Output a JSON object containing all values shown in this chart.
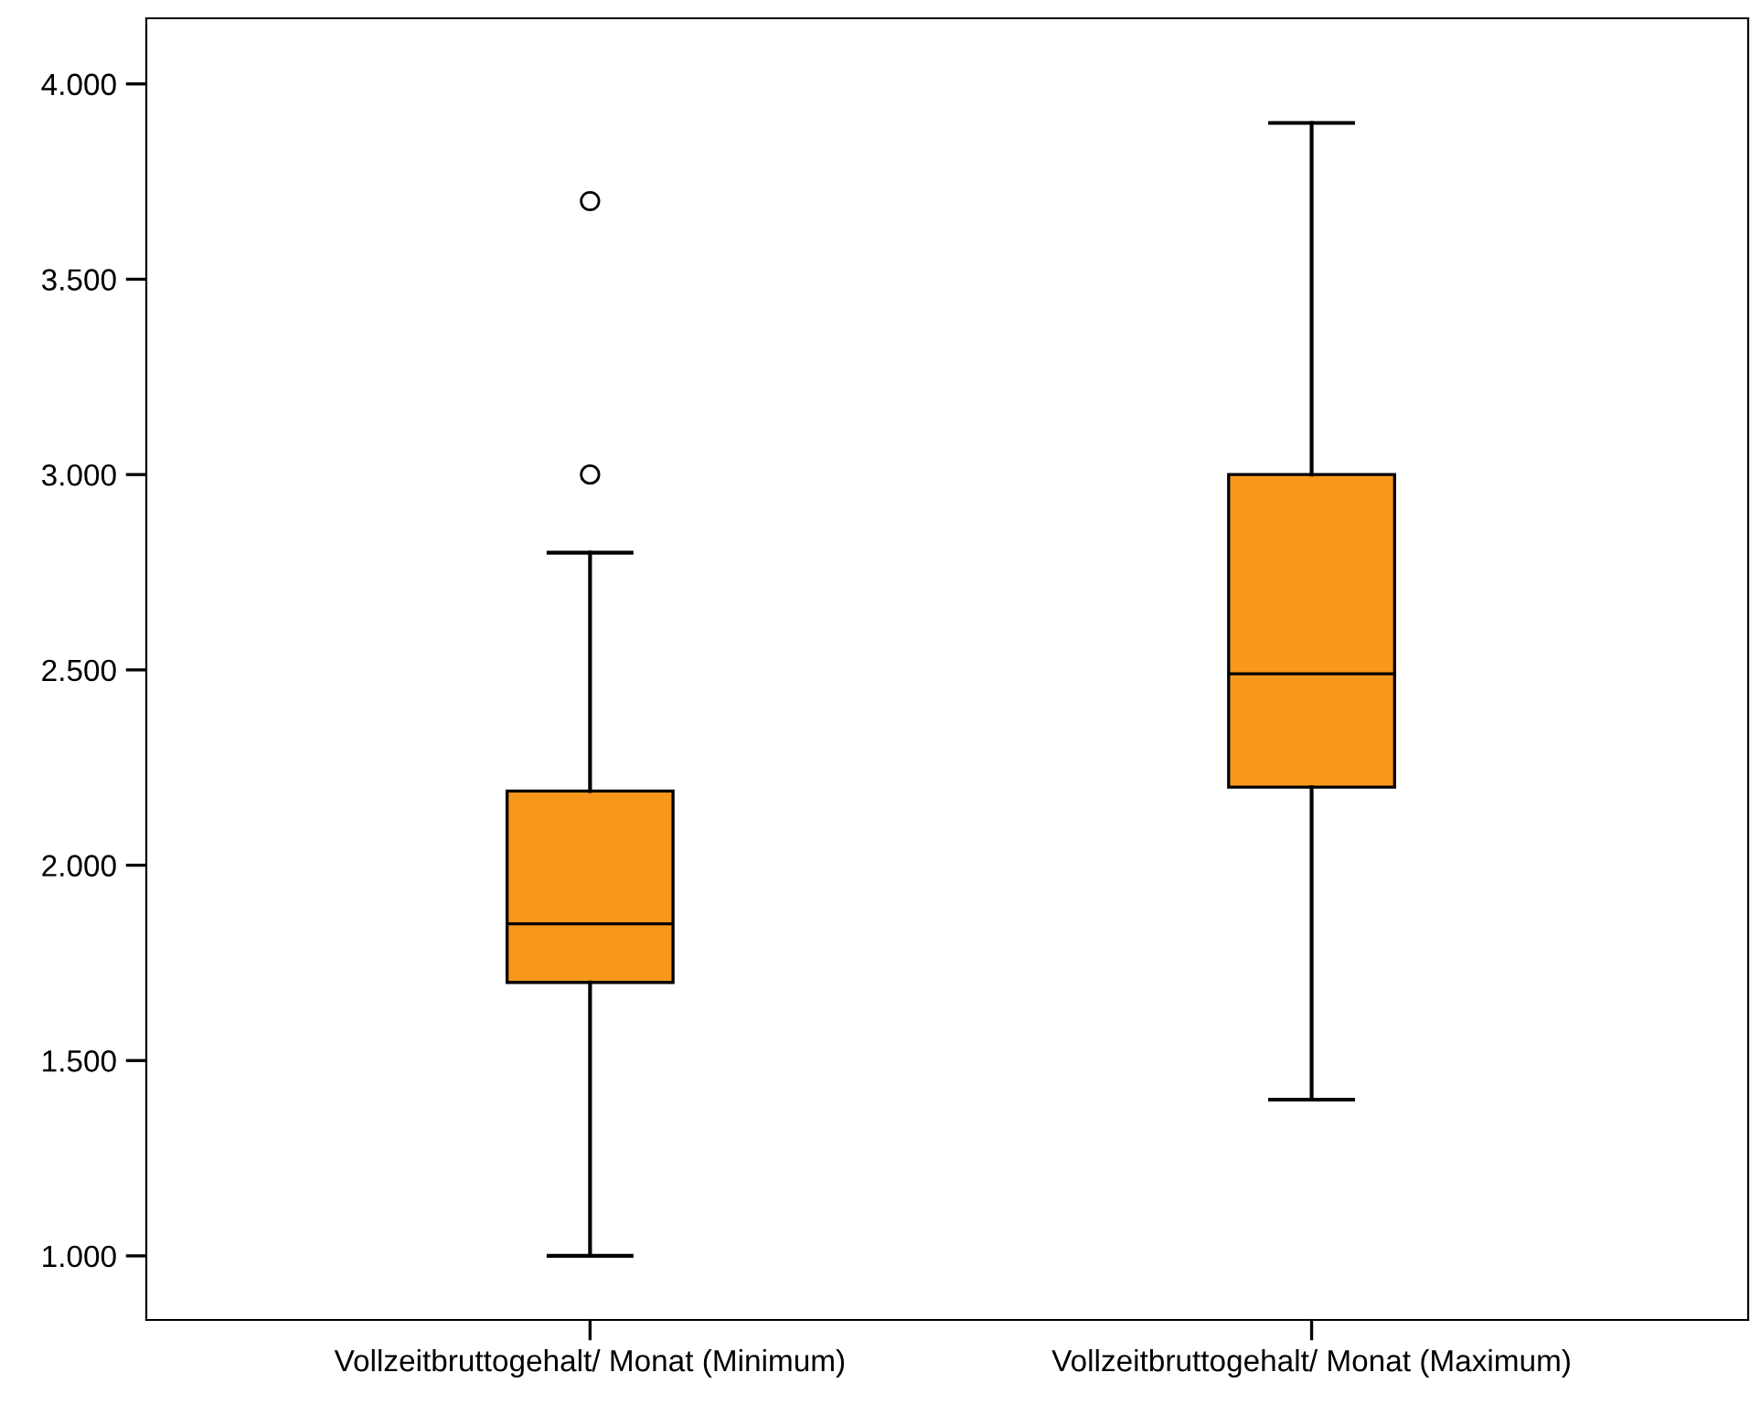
{
  "chart_data": {
    "type": "box",
    "categories": [
      "Vollzeitbruttogehalt/ Monat (Minimum)",
      "Vollzeitbruttogehalt/ Monat (Maximum)"
    ],
    "color": "#f7981d",
    "boxes": [
      {
        "low": 1000,
        "q1": 1700,
        "median": 1850,
        "q3": 2190,
        "high": 2800,
        "outliers": [
          3000,
          3700
        ]
      },
      {
        "low": 1400,
        "q1": 2200,
        "median": 2490,
        "q3": 3000,
        "high": 3900
      }
    ],
    "ylim": [
      836,
      4168
    ],
    "yticks": [
      {
        "value": 1000,
        "label": "1.000"
      },
      {
        "value": 1500,
        "label": "1.500"
      },
      {
        "value": 2000,
        "label": "2.000"
      },
      {
        "value": 2500,
        "label": "2.500"
      },
      {
        "value": 3000,
        "label": "3.000"
      },
      {
        "value": 3500,
        "label": "3.500"
      },
      {
        "value": 4000,
        "label": "4.000"
      }
    ],
    "grid": false
  }
}
